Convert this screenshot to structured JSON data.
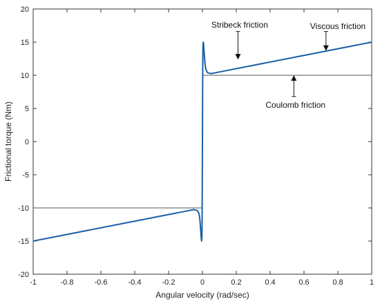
{
  "chart_data": {
    "type": "line",
    "title": "",
    "xlabel": "Angular velocity (rad/sec)",
    "ylabel": "Frictional torque (Nm)",
    "xlim": [
      -1,
      1
    ],
    "ylim": [
      -20,
      20
    ],
    "xticks": [
      -1,
      -0.8,
      -0.6,
      -0.4,
      -0.2,
      0,
      0.2,
      0.4,
      0.6,
      0.8,
      1
    ],
    "xtick_labels": [
      "-1",
      "-0.8",
      "-0.6",
      "-0.4",
      "-0.2",
      "0",
      "0.2",
      "0.4",
      "0.6",
      "0.8",
      "1"
    ],
    "yticks": [
      -20,
      -15,
      -10,
      -5,
      0,
      5,
      10,
      15,
      20
    ],
    "ytick_labels": [
      "-20",
      "-15",
      "-10",
      "-5",
      "0",
      "5",
      "10",
      "15",
      "20"
    ],
    "grid": false,
    "series": [
      {
        "color": "#1a5fa8",
        "x": [
          -1,
          -0.5,
          -0.1,
          -0.05,
          -0.03,
          -0.02,
          -0.015,
          -0.01,
          -0.007,
          -0.005,
          -0.003,
          -0.002,
          -0.001,
          0,
          0.001,
          0.002,
          0.003,
          0.005,
          0.007,
          0.01,
          0.015,
          0.02,
          0.03,
          0.05,
          0.1,
          0.5,
          1
        ],
        "y": [
          -15,
          -12.5,
          -10.5,
          -10.25,
          -10.4,
          -10.9,
          -11.8,
          -13.5,
          -14.6,
          -15,
          -14.3,
          -12,
          -7,
          0,
          7,
          12,
          14.3,
          15,
          14.6,
          13.5,
          11.8,
          10.9,
          10.4,
          10.25,
          10.5,
          12.5,
          15
        ]
      },
      {
        "color": "#555555",
        "x": [
          -1,
          0,
          0,
          1
        ],
        "y": [
          -10,
          -10,
          10,
          10
        ]
      }
    ],
    "annotations": [
      {
        "text": "Stribeck friction",
        "label_x": 0.22,
        "label_y": 17.6,
        "arrow_from": [
          0.21,
          16.6
        ],
        "arrow_to": [
          0.21,
          12.8
        ]
      },
      {
        "text": "Viscous friction",
        "label_x": 0.8,
        "label_y": 17.4,
        "arrow_from": [
          0.73,
          16.6
        ],
        "arrow_to": [
          0.73,
          14.1
        ]
      },
      {
        "text": "Coulomb friction",
        "label_x": 0.55,
        "label_y": 5.5,
        "arrow_from": [
          0.54,
          6.8
        ],
        "arrow_to": [
          0.54,
          9.6
        ]
      }
    ]
  }
}
